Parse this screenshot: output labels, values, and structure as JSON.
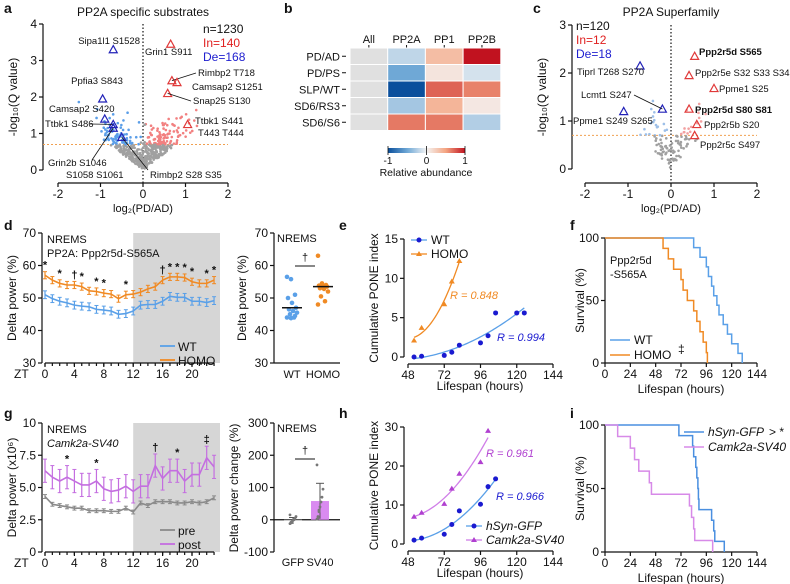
{
  "panel_labels": [
    "a",
    "b",
    "c",
    "d",
    "e",
    "f",
    "g",
    "h",
    "i"
  ],
  "colors": {
    "wt": "#5aa0e8",
    "homo": "#f08a24",
    "pre": "#8a8a8a",
    "post": "#c46ee0",
    "blue_marker": "#2222b8",
    "red_marker": "#e03a3a",
    "fit_wt": "#5aa0e8",
    "dot_wt": "#1a1ad0",
    "shade": "#d6d6d6"
  },
  "chart_data": [
    {
      "panel": "a",
      "type": "scatter",
      "title": "PP2A specific substrates",
      "xlabel": "log₂(PD/AD)",
      "ylabel": "-log₁₀(Q value)",
      "xlim": [
        -2,
        2
      ],
      "ylim": [
        0,
        4
      ],
      "xticks": [
        -2,
        -1,
        0,
        1,
        2
      ],
      "yticks": [
        0,
        1,
        2,
        3,
        4
      ],
      "threshold": 0.7,
      "counts": {
        "n": "n=1230",
        "in": "In=140",
        "de": "De=168"
      },
      "labeled_points": [
        {
          "label": "Sipa1l1 S1528",
          "x": -0.7,
          "y": 3.3,
          "dir": "down"
        },
        {
          "label": "Ppfia3 S843",
          "x": -0.95,
          "y": 1.95,
          "dir": "down"
        },
        {
          "label": "Camsap2 S420",
          "x": -0.9,
          "y": 1.4,
          "dir": "down"
        },
        {
          "label": "Ttbk1 S486",
          "x": -0.7,
          "y": 1.25,
          "dir": "down"
        },
        {
          "label": "Grin2b S1046",
          "label2": "S1058 S1061",
          "x": -0.7,
          "y": 1.15,
          "dir": "down"
        },
        {
          "label": "Rimbp2  S28 S35",
          "x": -0.5,
          "y": 0.9,
          "dir": "down"
        },
        {
          "label": "Grin1 S911",
          "x": 0.65,
          "y": 3.45,
          "dir": "up"
        },
        {
          "label": "Rimbp2 T718",
          "x": 0.68,
          "y": 2.45,
          "dir": "up"
        },
        {
          "label": "Camsap2 S1251",
          "x": 0.8,
          "y": 2.4,
          "dir": "up"
        },
        {
          "label": "Snap25 S130",
          "x": 0.58,
          "y": 2.1,
          "dir": "up"
        },
        {
          "label": "Ttbk1 S441",
          "label2": "T443 T444",
          "x": 1.05,
          "y": 1.25,
          "dir": "up"
        }
      ]
    },
    {
      "panel": "b",
      "type": "heatmap",
      "columns": [
        "All",
        "PP2A",
        "PP1",
        "PP2B"
      ],
      "rows": [
        "PD/AD",
        "PD/PS",
        "SLP/WT",
        "SD6/RS3",
        "SD6/S6"
      ],
      "values": [
        [
          null,
          -0.2,
          0.35,
          1.0
        ],
        [
          null,
          -0.5,
          0.1,
          -0.12
        ],
        [
          null,
          -1.0,
          0.72,
          0.62
        ],
        [
          null,
          -0.3,
          0.4,
          0.08
        ],
        [
          null,
          0.65,
          0.65,
          -0.25
        ]
      ],
      "colorbar": {
        "label": "Relative abundance",
        "ticks": [
          "-1",
          "0",
          "1"
        ],
        "range": [
          -1,
          1
        ]
      }
    },
    {
      "panel": "c",
      "type": "scatter",
      "title": "PP2A Superfamily",
      "xlabel": "log₂(PD/AD)",
      "ylabel": "-log₁₀(Q value)",
      "xlim": [
        -2,
        2
      ],
      "ylim": [
        0,
        3
      ],
      "xticks": [
        -2,
        -1,
        0,
        1,
        2
      ],
      "yticks": [
        0,
        1,
        2,
        3
      ],
      "threshold": 0.7,
      "counts": {
        "n": "n=120",
        "in": "In=12",
        "de": "De=18"
      },
      "labeled_points": [
        {
          "label": "Tiprl T268 S270",
          "x": -0.72,
          "y": 2.15,
          "dir": "down"
        },
        {
          "label": "Lcmt1 S247",
          "x": -0.2,
          "y": 1.25,
          "dir": "down"
        },
        {
          "label": "Ppme1 S249 S265",
          "x": -1.1,
          "y": 1.2,
          "dir": "down"
        },
        {
          "label": "Ppp2r5d S565",
          "x": 0.55,
          "y": 2.35,
          "dir": "up",
          "bold": true
        },
        {
          "label": "Ppp2r5e S32 S33 S34",
          "x": 0.42,
          "y": 1.95,
          "dir": "up"
        },
        {
          "label": "Ppme1 S25",
          "x": 1.0,
          "y": 1.68,
          "dir": "up"
        },
        {
          "label": "Ppp2r5d S80 S81",
          "x": 0.42,
          "y": 1.25,
          "dir": "up",
          "bold": true
        },
        {
          "label": "Ppp2r5b S20",
          "x": 0.6,
          "y": 0.93,
          "dir": "up"
        },
        {
          "label": "Ppp2r5c S497",
          "x": 0.55,
          "y": 0.7,
          "dir": "up"
        }
      ]
    },
    {
      "panel": "d",
      "type": "line",
      "text1": "NREMS",
      "text2": "PP2A: Ppp2r5d-S565A",
      "ylabel": "Delta power (%)",
      "xprefix": "ZT",
      "xlim": [
        0,
        23
      ],
      "ylim": [
        30,
        70
      ],
      "xticks": [
        0,
        4,
        8,
        12,
        16,
        20
      ],
      "yticks": [
        "30",
        "40",
        "50",
        "60",
        "70"
      ],
      "dark_phase": [
        12,
        24
      ],
      "x": [
        0,
        1,
        2,
        3,
        4,
        5,
        6,
        7,
        8,
        9,
        10,
        11,
        12,
        13,
        14,
        15,
        16,
        17,
        18,
        19,
        20,
        21,
        22,
        23
      ],
      "series": [
        {
          "name": "WT",
          "values": [
            51,
            49.8,
            49,
            48.5,
            47.8,
            47.5,
            47.3,
            46.5,
            46.3,
            46,
            45,
            45.2,
            46,
            47.8,
            48,
            48,
            49,
            50.5,
            50.2,
            50.2,
            49,
            49,
            48.6,
            49.2
          ],
          "sem": 1.2
        },
        {
          "name": "HOMO",
          "values": [
            57,
            55.5,
            54.5,
            54,
            54,
            53.5,
            52.2,
            52,
            51.5,
            51.2,
            49.8,
            51,
            51.2,
            51.8,
            52.8,
            53.5,
            55.5,
            56.5,
            56.5,
            56.3,
            55,
            54.5,
            54.5,
            55.5
          ],
          "sem": 1.1
        }
      ],
      "significance": [
        {
          "x": 0,
          "m": "*"
        },
        {
          "x": 2,
          "m": "*"
        },
        {
          "x": 4,
          "m": "†"
        },
        {
          "x": 5,
          "m": "*"
        },
        {
          "x": 7,
          "m": "*"
        },
        {
          "x": 8,
          "m": "*"
        },
        {
          "x": 11,
          "m": "*"
        },
        {
          "x": 16,
          "m": "†"
        },
        {
          "x": 17,
          "m": "*"
        },
        {
          "x": 18,
          "m": "*"
        },
        {
          "x": 19,
          "m": "*"
        },
        {
          "x": 20,
          "m": "*"
        },
        {
          "x": 22,
          "m": "*"
        },
        {
          "x": 23,
          "m": "*"
        }
      ]
    },
    {
      "panel": "d",
      "type": "scatter",
      "text1": "NREMS",
      "ylabel": "Delta power (%)",
      "categories": [
        "WT",
        "HOMO"
      ],
      "ylim": [
        30,
        70
      ],
      "yticks": [
        "30",
        "40",
        "50",
        "60",
        "70"
      ],
      "groups": [
        [
          56.5,
          55.8,
          51,
          50,
          48.5,
          47,
          46.5,
          46,
          45.5,
          45,
          44,
          44,
          43.8,
          44.5
        ],
        [
          63,
          54.5,
          54,
          53.8,
          53.5,
          53.5,
          53,
          52.8,
          52,
          50.5,
          49,
          48
        ]
      ],
      "medians": [
        47,
        53.5
      ],
      "significance": "†"
    },
    {
      "panel": "e",
      "type": "scatter",
      "xlabel": "Lifespan (hours)",
      "ylabel": "Cumulative PONE index",
      "xlim": [
        48,
        144
      ],
      "ylim": [
        0,
        15
      ],
      "xticks": [
        48,
        72,
        96,
        120,
        144
      ],
      "yticks": [
        0,
        5,
        10,
        15
      ],
      "series": [
        {
          "name": "WT",
          "x": [
            52,
            57,
            72,
            77,
            82,
            96,
            101,
            106,
            120,
            125
          ],
          "y": [
            0,
            0.1,
            0.2,
            0.6,
            1.5,
            1.8,
            2.7,
            5.6,
            5.6,
            5.6
          ],
          "r": "R = 0.994"
        },
        {
          "name": "HOMO",
          "x": [
            52,
            57,
            72,
            77,
            82
          ],
          "y": [
            2.1,
            3.7,
            6.7,
            9.6,
            12.2
          ],
          "r": "R = 0.848"
        }
      ]
    },
    {
      "panel": "f",
      "type": "line",
      "xlabel": "Lifespan (hours)",
      "ylabel": "Survival (%)",
      "xlim": [
        0,
        144
      ],
      "ylim": [
        0,
        100
      ],
      "xticks": [
        0,
        24,
        48,
        72,
        96,
        120,
        144
      ],
      "yticks": [
        0,
        50,
        100
      ],
      "text1": "Ppp2r5d",
      "text2": "-S565A",
      "significance": "‡",
      "series": [
        {
          "name": "WT",
          "death_times": [
            84,
            90,
            96,
            98,
            101,
            103,
            106,
            108,
            112,
            116,
            120,
            126,
            130
          ]
        },
        {
          "name": "HOMO",
          "death_times": [
            55,
            60,
            65,
            72,
            74,
            78,
            84,
            87,
            90,
            93,
            96,
            97
          ]
        }
      ]
    },
    {
      "panel": "g",
      "type": "line",
      "text1": "NREMS",
      "text2": "Camk2a-SV40",
      "ylabel": "Delta power (x10⁶)",
      "xprefix": "ZT",
      "xlim": [
        0,
        23
      ],
      "ylim": [
        0,
        10
      ],
      "xticks": [
        0,
        4,
        8,
        12,
        16,
        20
      ],
      "yticks": [
        "0",
        "2.5",
        "5.0",
        "7.5",
        "10"
      ],
      "dark_phase": [
        12,
        24
      ],
      "x": [
        0,
        1,
        2,
        3,
        4,
        5,
        6,
        7,
        8,
        9,
        10,
        11,
        12,
        13,
        14,
        15,
        16,
        17,
        18,
        19,
        20,
        21,
        22,
        23
      ],
      "series": [
        {
          "name": "pre",
          "values": [
            4.3,
            3.7,
            3.6,
            3.5,
            3.4,
            3.4,
            3.2,
            3.2,
            3.2,
            3.15,
            3.15,
            3.4,
            3.1,
            3.8,
            3.6,
            3.9,
            3.9,
            3.9,
            3.8,
            3.8,
            3.9,
            3.8,
            3.9,
            4.2
          ],
          "sem": 0.15
        },
        {
          "name": "post",
          "values": [
            6.3,
            5.8,
            5.5,
            5.8,
            5.5,
            5.2,
            5.2,
            5.5,
            4.9,
            4.7,
            4.8,
            5.1,
            4.7,
            5.1,
            5.1,
            6.7,
            5.7,
            6.3,
            6.3,
            5.5,
            6,
            6,
            7.3,
            6.6
          ],
          "sem": 0.9
        }
      ],
      "significance": [
        {
          "x": 3,
          "m": "*"
        },
        {
          "x": 7,
          "m": "*"
        },
        {
          "x": 15,
          "m": "†"
        },
        {
          "x": 18,
          "m": "*"
        },
        {
          "x": 22,
          "m": "‡"
        }
      ]
    },
    {
      "panel": "g",
      "type": "bar",
      "text1": "NREMS",
      "ylabel": "Delta power change (%)",
      "categories": [
        "GFP",
        "SV40"
      ],
      "ylim": [
        -100,
        300
      ],
      "yticks": [
        "-100",
        "0",
        "100",
        "200",
        "300"
      ],
      "values": [
        -3,
        58
      ],
      "sd": [
        10,
        55
      ],
      "points": [
        [
          -12,
          -8,
          -5,
          -2,
          0,
          5,
          10,
          15,
          -10,
          -6
        ],
        [
          2,
          10,
          25,
          40,
          55,
          70,
          95,
          170,
          5,
          30
        ]
      ],
      "significance": "†"
    },
    {
      "panel": "h",
      "type": "scatter",
      "xlabel": "Lifespan (hours)",
      "ylabel": "Cumulative PONE index",
      "xlim": [
        48,
        144
      ],
      "ylim": [
        0,
        30
      ],
      "xticks": [
        48,
        72,
        96,
        120,
        144
      ],
      "yticks": [
        0,
        10,
        20,
        30
      ],
      "series": [
        {
          "name": "hSyn-GFP",
          "x": [
            52,
            57,
            72,
            77,
            82,
            96,
            101,
            106
          ],
          "y": [
            1,
            1.5,
            2.5,
            5,
            8.5,
            10.2,
            14.7,
            16.7
          ],
          "r": "R = 0.966"
        },
        {
          "name": "Camk2a-SV40",
          "x": [
            52,
            57,
            72,
            77,
            82,
            96,
            101
          ],
          "y": [
            7,
            8,
            10.3,
            14.2,
            18,
            21,
            29
          ],
          "r": "R = 0.961"
        }
      ]
    },
    {
      "panel": "i",
      "type": "line",
      "xlabel": "Lifespan (hours)",
      "ylabel": "Survival (%)",
      "xlim": [
        0,
        144
      ],
      "ylim": [
        0,
        100
      ],
      "xticks": [
        0,
        24,
        48,
        72,
        96,
        120,
        144
      ],
      "yticks": [
        0,
        50,
        100
      ],
      "significance": "> *",
      "series": [
        {
          "name": "hSyn-GFP",
          "death_times": [
            70,
            83,
            84,
            86,
            87,
            88,
            88.5,
            89,
            101,
            103,
            104,
            113
          ]
        },
        {
          "name": "Camk2a-SV40",
          "death_times": [
            12,
            24,
            28,
            32,
            42,
            44,
            80,
            82,
            84,
            85,
            102
          ]
        }
      ]
    }
  ]
}
